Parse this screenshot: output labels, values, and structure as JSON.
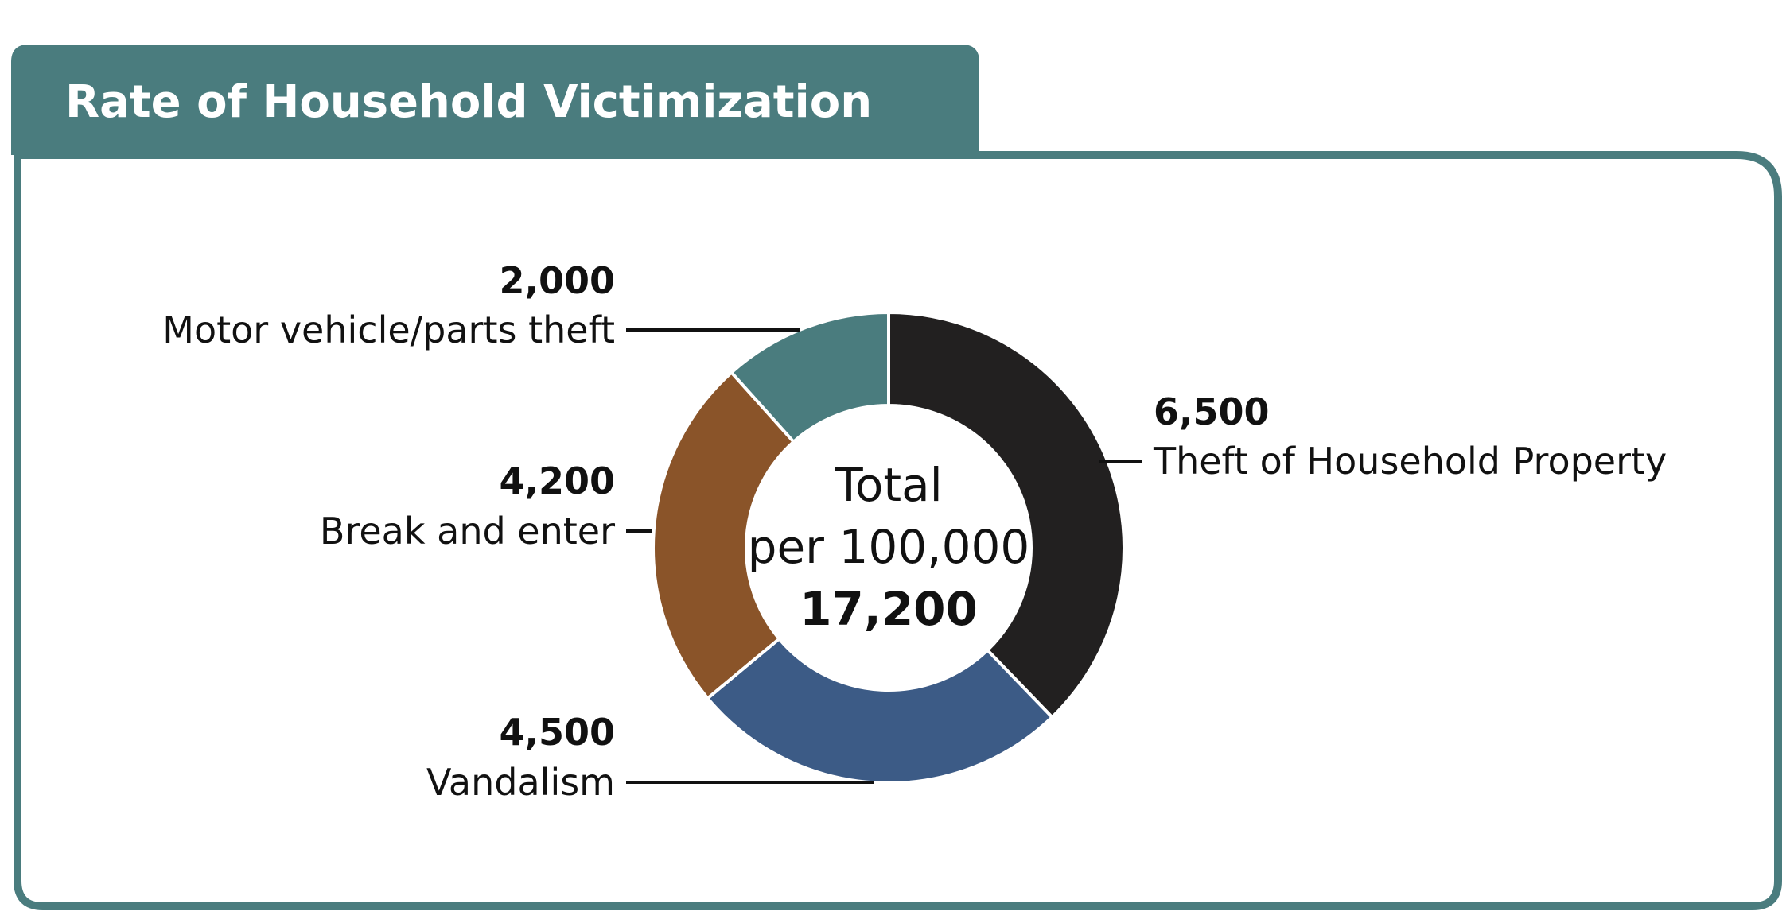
{
  "header": {
    "title": "Rate of Household Victimization"
  },
  "colors": {
    "frame": "#4a7c7e",
    "background": "#ffffff",
    "text": "#111111",
    "leader": "#111111"
  },
  "chart_data": {
    "type": "pie",
    "style": "donut",
    "title": "Rate of Household Victimization",
    "center": {
      "line1": "Total",
      "line2": "per 100,000",
      "total": "17,200"
    },
    "slices": [
      {
        "label": "Theft of Household Property",
        "value": 6500,
        "value_label": "6,500",
        "color": "#222020"
      },
      {
        "label": "Vandalism",
        "value": 4500,
        "value_label": "4,500",
        "color": "#3c5b86"
      },
      {
        "label": "Break and enter",
        "value": 4200,
        "value_label": "4,200",
        "color": "#8a5429"
      },
      {
        "label": "Motor vehicle/parts theft",
        "value": 2000,
        "value_label": "2,000",
        "color": "#4a7c7e"
      }
    ],
    "start": "top",
    "direction": "clockwise"
  }
}
